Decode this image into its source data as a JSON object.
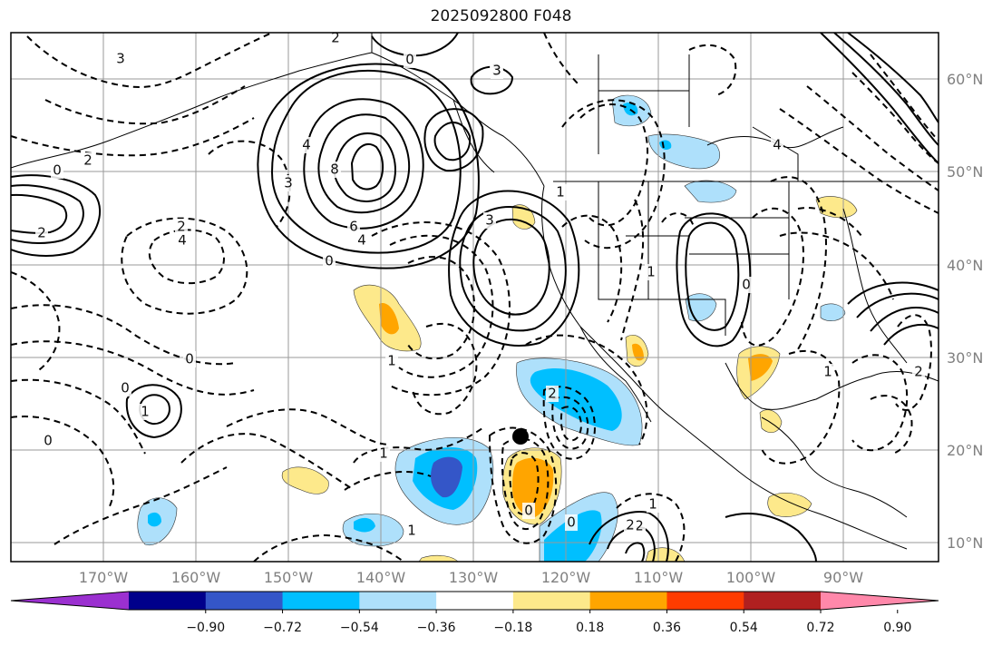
{
  "title": "2025092800 F048",
  "map": {
    "lat_labels": [
      "60°N",
      "50°N",
      "40°N",
      "30°N",
      "20°N",
      "10°N"
    ],
    "lon_labels": [
      "170°W",
      "160°W",
      "150°W",
      "140°W",
      "130°W",
      "120°W",
      "110°W",
      "100°W",
      "90°W"
    ],
    "colors": {
      "land_border": "#000000",
      "grid": "#9a9a9a",
      "neg_lightblue": "#aee0fb",
      "neg_cyan": "#00bfff",
      "neg_blue": "#3456c8",
      "pos_yellow": "#fde98b",
      "pos_orange": "#ffa500"
    },
    "marker": {
      "type": "black-dot",
      "lat": 21.5,
      "lon": -125.5
    },
    "contour_labels": [
      {
        "text": "2"
      },
      {
        "text": "0"
      },
      {
        "text": "3"
      },
      {
        "text": "4"
      },
      {
        "text": "6"
      },
      {
        "text": "8"
      },
      {
        "text": "3"
      },
      {
        "text": "0"
      },
      {
        "text": "4"
      },
      {
        "text": "2"
      },
      {
        "text": "0"
      },
      {
        "text": "4"
      },
      {
        "text": "3"
      },
      {
        "text": "2"
      },
      {
        "text": "0"
      },
      {
        "text": "1"
      },
      {
        "text": "0"
      },
      {
        "text": "1"
      },
      {
        "text": "1"
      },
      {
        "text": "2"
      },
      {
        "text": "0"
      },
      {
        "text": "1"
      },
      {
        "text": "2"
      },
      {
        "text": "1"
      },
      {
        "text": "0"
      },
      {
        "text": "2"
      },
      {
        "text": "0"
      },
      {
        "text": "3"
      },
      {
        "text": "1"
      },
      {
        "text": "2"
      },
      {
        "text": "1"
      },
      {
        "text": "0"
      },
      {
        "text": "3"
      },
      {
        "text": "4"
      },
      {
        "text": "1"
      },
      {
        "text": "2"
      }
    ]
  },
  "colorbar": {
    "ticks": [
      "−0.90",
      "−0.72",
      "−0.54",
      "−0.36",
      "−0.18",
      "0.18",
      "0.36",
      "0.54",
      "0.72",
      "0.90"
    ],
    "colors": [
      "#9b30d0",
      "#00008b",
      "#3456c8",
      "#00bfff",
      "#aee0fb",
      "#ffffff",
      "#fde98b",
      "#ffa500",
      "#ff3c00",
      "#b02020",
      "#ff88aa"
    ]
  }
}
